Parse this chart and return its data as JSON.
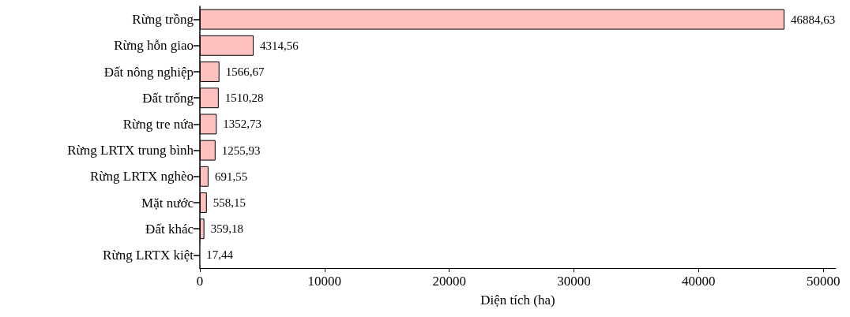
{
  "chart_data": {
    "type": "bar",
    "orientation": "horizontal",
    "xlabel": "Diện tích (ha)",
    "categories": [
      "Rừng trồng",
      "Rừng hỗn giao",
      "Đất nông nghiệp",
      "Đất trống",
      "Rừng tre nứa",
      "Rừng LRTX trung bình",
      "Rừng LRTX nghèo",
      "Mặt nước",
      "Đất khác",
      "Rừng LRTX kiệt"
    ],
    "values": [
      46884.63,
      4314.56,
      1566.67,
      1510.28,
      1352.73,
      1255.93,
      691.55,
      558.15,
      359.18,
      17.44
    ],
    "value_labels": [
      "46884,63",
      "4314,56",
      "1566,67",
      "1510,28",
      "1352,73",
      "1255,93",
      "691,55",
      "558,15",
      "359,18",
      "17,44"
    ],
    "color": "#ffc0c0",
    "xlim": [
      0,
      51000
    ],
    "xticks": [
      0,
      10000,
      20000,
      30000,
      40000,
      50000
    ],
    "grid": false
  }
}
